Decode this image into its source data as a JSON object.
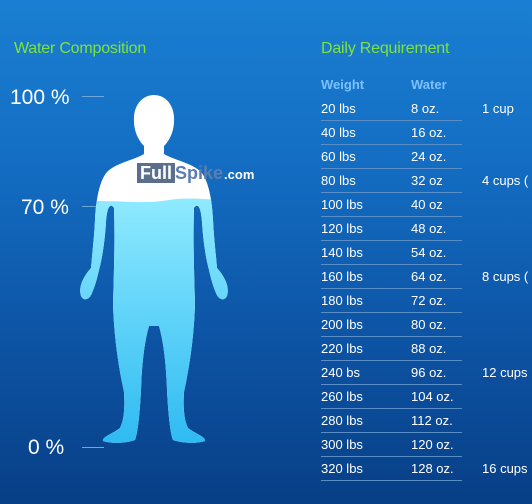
{
  "left_title": "Water Composition",
  "right_title": "Daily Requirement",
  "percent_labels": {
    "top": "100 %",
    "mid": "70 %",
    "bottom": "0 %"
  },
  "water_level_fraction": 0.7,
  "brand": {
    "full": "Full",
    "spike": "Spike",
    "com": ".com"
  },
  "table": {
    "headers": {
      "weight": "Weight",
      "water": "Water"
    },
    "rows": [
      {
        "weight": "20 lbs",
        "water": "8 oz.",
        "cups": "1 cup"
      },
      {
        "weight": "40 lbs",
        "water": "16 oz.",
        "cups": ""
      },
      {
        "weight": "60 lbs",
        "water": "24 oz.",
        "cups": ""
      },
      {
        "weight": "80 lbs",
        "water": "32 oz",
        "cups": "4 cups ("
      },
      {
        "weight": "100 lbs",
        "water": "40 oz",
        "cups": ""
      },
      {
        "weight": "120 lbs",
        "water": "48 oz.",
        "cups": ""
      },
      {
        "weight": "140 lbs",
        "water": "54 oz.",
        "cups": ""
      },
      {
        "weight": "160 lbs",
        "water": "64 oz.",
        "cups": "8 cups ("
      },
      {
        "weight": "180 lbs",
        "water": "72 oz.",
        "cups": ""
      },
      {
        "weight": "200 lbs",
        "water": "80 oz.",
        "cups": ""
      },
      {
        "weight": "220 lbs",
        "water": "88 oz.",
        "cups": ""
      },
      {
        "weight": "240 bs",
        "water": "96 oz.",
        "cups": "12 cups"
      },
      {
        "weight": "260 lbs",
        "water": "104 oz.",
        "cups": ""
      },
      {
        "weight": "280 lbs",
        "water": "112 oz.",
        "cups": ""
      },
      {
        "weight": "300 lbs",
        "water": "120 oz.",
        "cups": ""
      },
      {
        "weight": "320 lbs",
        "water": "128 oz.",
        "cups": "16 cups"
      }
    ]
  },
  "colors": {
    "heading": "#7ee43a",
    "body_top": "#ffffff",
    "water_top": "#8feaff",
    "water_bottom": "#2bb9f2"
  }
}
